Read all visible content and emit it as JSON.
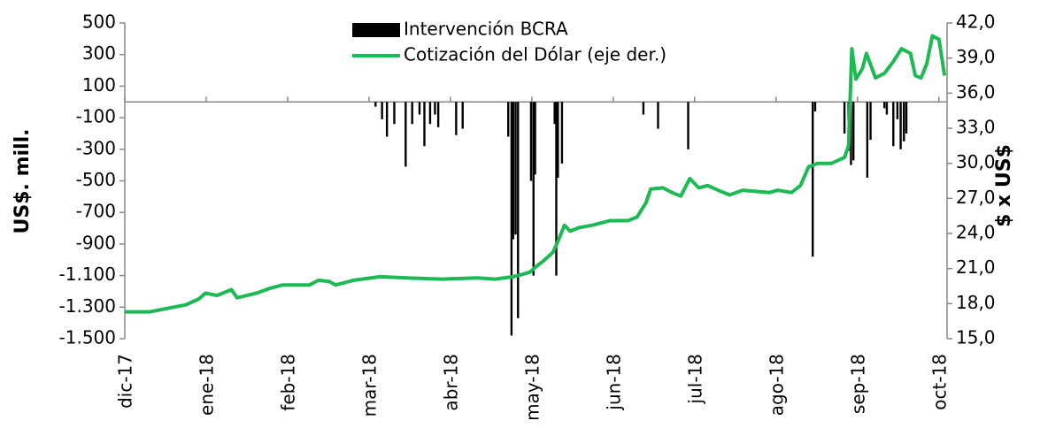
{
  "chart_data": {
    "type": "bar-line",
    "ylabel": "US$. mill.",
    "y2label": "$ x US$",
    "xlim": [
      0,
      10.1
    ],
    "xticks": [
      {
        "value": 0,
        "label": "dic-17"
      },
      {
        "value": 1,
        "label": "ene-18"
      },
      {
        "value": 2,
        "label": "feb-18"
      },
      {
        "value": 3,
        "label": "mar-18"
      },
      {
        "value": 4,
        "label": "abr-18"
      },
      {
        "value": 5,
        "label": "may-18"
      },
      {
        "value": 6,
        "label": "jun-18"
      },
      {
        "value": 7,
        "label": "jul-18"
      },
      {
        "value": 8,
        "label": "ago-18"
      },
      {
        "value": 9,
        "label": "sep-18"
      },
      {
        "value": 10,
        "label": "oct-18"
      }
    ],
    "ylim": [
      -1500,
      500
    ],
    "yticks": [
      500,
      300,
      100,
      -100,
      -300,
      -500,
      -700,
      -900,
      {
        "value": -1100,
        "label": "-1.100"
      },
      {
        "value": -1300,
        "label": "-1.300"
      },
      {
        "value": -1500,
        "label": "-1.500"
      }
    ],
    "y2lim": [
      15,
      42
    ],
    "y2ticks": [
      {
        "value": 42,
        "label": "42,0"
      },
      {
        "value": 39,
        "label": "39,0"
      },
      {
        "value": 36,
        "label": "36,0"
      },
      {
        "value": 33,
        "label": "33,0"
      },
      {
        "value": 30,
        "label": "30,0"
      },
      {
        "value": 27,
        "label": "27,0"
      },
      {
        "value": 24,
        "label": "24,0"
      },
      {
        "value": 21,
        "label": "21,0"
      },
      {
        "value": 18,
        "label": "18,0"
      },
      {
        "value": 15,
        "label": "15,0"
      }
    ],
    "legend": "top-center",
    "series": [
      {
        "name": "Intervención BCRA",
        "type": "bar",
        "color": "#000000",
        "x": [
          3.08,
          3.16,
          3.22,
          3.31,
          3.45,
          3.53,
          3.62,
          3.68,
          3.75,
          3.81,
          3.85,
          4.07,
          4.15,
          4.71,
          4.75,
          4.77,
          4.8,
          4.83,
          4.99,
          5.02,
          5.04,
          5.28,
          5.3,
          5.32,
          5.37,
          6.37,
          6.55,
          6.92,
          8.45,
          8.48,
          8.84,
          8.89,
          8.92,
          8.95,
          9.12,
          9.16,
          9.33,
          9.36,
          9.44,
          9.49,
          9.53,
          9.57,
          9.6
        ],
        "values": [
          -30,
          -110,
          -220,
          -140,
          -410,
          -140,
          -80,
          -280,
          -140,
          -80,
          -160,
          -210,
          -170,
          -220,
          -1480,
          -870,
          -840,
          -1370,
          -500,
          -1100,
          -460,
          -140,
          -1100,
          -480,
          -390,
          -80,
          -170,
          -300,
          -980,
          -60,
          -200,
          -310,
          -400,
          -370,
          -480,
          -240,
          -40,
          -80,
          -280,
          -110,
          -300,
          -250,
          -200
        ]
      },
      {
        "name": "Cotización del Dólar (eje der.)",
        "type": "line",
        "color": "#1db954",
        "axis": "y2",
        "x": [
          0,
          0.31,
          0.53,
          0.75,
          0.91,
          0.99,
          1.13,
          1.24,
          1.31,
          1.38,
          1.62,
          1.78,
          1.94,
          2.27,
          2.38,
          2.51,
          2.59,
          2.81,
          3.14,
          3.46,
          3.9,
          4.33,
          4.55,
          4.77,
          4.88,
          4.98,
          5.04,
          5.15,
          5.26,
          5.33,
          5.4,
          5.47,
          5.58,
          5.74,
          5.96,
          6.18,
          6.29,
          6.4,
          6.46,
          6.61,
          6.72,
          6.83,
          6.94,
          7.05,
          7.16,
          7.32,
          7.43,
          7.59,
          7.75,
          7.92,
          8.02,
          8.19,
          8.3,
          8.4,
          8.51,
          8.68,
          8.84,
          8.89,
          8.93,
          8.98,
          9.06,
          9.11,
          9.22,
          9.33,
          9.44,
          9.54,
          9.65,
          9.71,
          9.78,
          9.85,
          9.92,
          10.0,
          10.07
        ],
        "values": [
          17.3,
          17.3,
          17.6,
          17.9,
          18.4,
          18.9,
          18.7,
          19.0,
          19.2,
          18.5,
          18.9,
          19.3,
          19.6,
          19.6,
          20.0,
          19.9,
          19.6,
          20.0,
          20.3,
          20.2,
          20.1,
          20.2,
          20.1,
          20.3,
          20.5,
          20.7,
          21.1,
          21.7,
          22.4,
          23.5,
          24.7,
          24.2,
          24.5,
          24.7,
          25.1,
          25.1,
          25.4,
          26.6,
          27.8,
          27.9,
          27.5,
          27.2,
          28.7,
          27.9,
          28.1,
          27.6,
          27.3,
          27.7,
          27.6,
          27.5,
          27.7,
          27.5,
          28.1,
          29.7,
          30.0,
          30.0,
          30.5,
          31.5,
          39.8,
          37.2,
          38.1,
          39.4,
          37.3,
          37.7,
          38.7,
          39.8,
          39.4,
          37.5,
          37.3,
          38.5,
          40.9,
          40.6,
          37.5
        ]
      }
    ]
  }
}
